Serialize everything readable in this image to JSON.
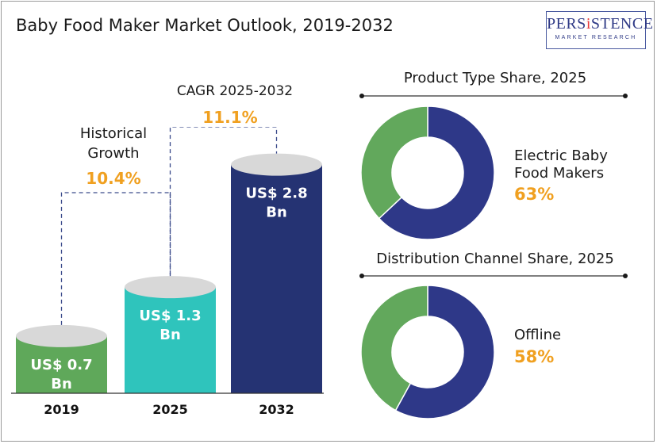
{
  "title": "Baby Food Maker Market Outlook, 2019-2032",
  "logo": {
    "word_before": "PERS",
    "word_i": "i",
    "word_mid": "ST",
    "word_i2": "E",
    "word_after": "NCE",
    "full": "PERSiSTENCE",
    "sub": "MARKET RESEARCH"
  },
  "colors": {
    "bar_2019": "#5fa85a",
    "bar_2025": "#2fc4bc",
    "bar_2032": "#253373",
    "pie_main": "#2e3888",
    "pie_rest": "#62a85c",
    "accent": "#f0a020"
  },
  "chart_data": [
    {
      "type": "bar",
      "categories": [
        "2019",
        "2025",
        "2032"
      ],
      "values": [
        0.7,
        1.3,
        2.8
      ],
      "data_labels": [
        "US$ 0.7\nBn",
        "US$ 1.3\nBn",
        "US$ 2.8\nBn"
      ],
      "annotations": [
        {
          "label": "Historical\nGrowth",
          "value": "10.4%"
        },
        {
          "label": "CAGR 2025-2032",
          "value": "11.1%"
        }
      ]
    },
    {
      "type": "pie",
      "title": "Product Type Share, 2025",
      "segments": [
        {
          "label": "Electric Baby\nFood Makers",
          "value": 63
        },
        {
          "label": "",
          "value": 37
        }
      ],
      "highlight_label_line1": "Electric Baby",
      "highlight_label_line2": "Food Makers",
      "highlight_value": "63%"
    },
    {
      "type": "pie",
      "title": "Distribution Channel Share, 2025",
      "segments": [
        {
          "label": "Offline",
          "value": 58
        },
        {
          "label": "",
          "value": 42
        }
      ],
      "highlight_label_line1": "Offline",
      "highlight_value": "58%"
    }
  ]
}
